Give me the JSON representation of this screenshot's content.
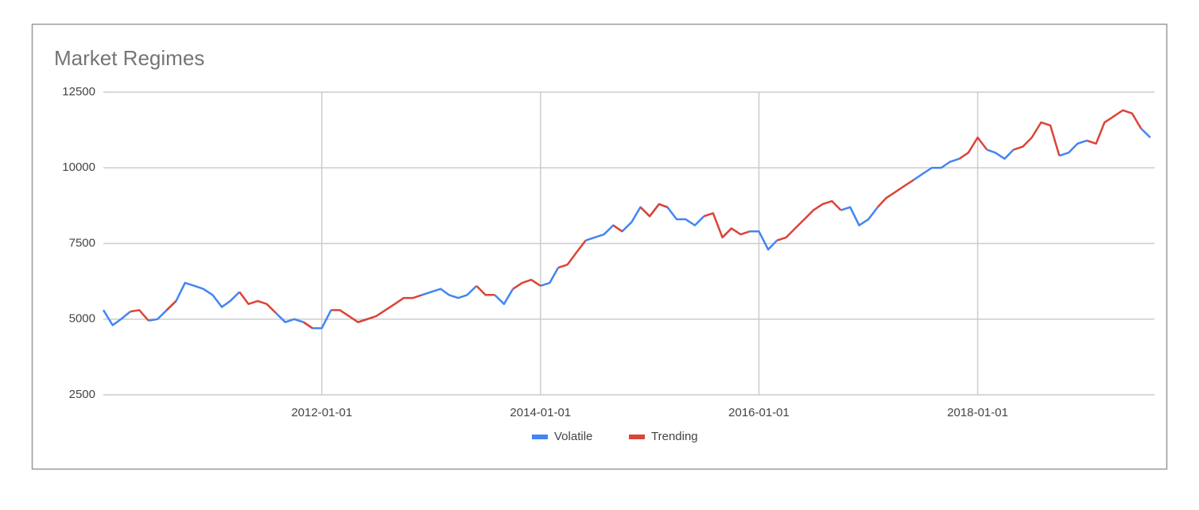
{
  "chart_data": {
    "type": "line",
    "title": "Market Regimes",
    "x": [
      "2010-01-01",
      "2010-02-01",
      "2010-03-01",
      "2010-04-01",
      "2010-05-01",
      "2010-06-01",
      "2010-07-01",
      "2010-08-01",
      "2010-09-01",
      "2010-10-01",
      "2010-11-01",
      "2010-12-01",
      "2011-01-01",
      "2011-02-01",
      "2011-03-01",
      "2011-04-01",
      "2011-05-01",
      "2011-06-01",
      "2011-07-01",
      "2011-08-01",
      "2011-09-01",
      "2011-10-01",
      "2011-11-01",
      "2011-12-01",
      "2012-01-01",
      "2012-02-01",
      "2012-03-01",
      "2012-04-01",
      "2012-05-01",
      "2012-06-01",
      "2012-07-01",
      "2012-08-01",
      "2012-09-01",
      "2012-10-01",
      "2012-11-01",
      "2012-12-01",
      "2013-01-01",
      "2013-02-01",
      "2013-03-01",
      "2013-04-01",
      "2013-05-01",
      "2013-06-01",
      "2013-07-01",
      "2013-08-01",
      "2013-09-01",
      "2013-10-01",
      "2013-11-01",
      "2013-12-01",
      "2014-01-01",
      "2014-02-01",
      "2014-03-01",
      "2014-04-01",
      "2014-05-01",
      "2014-06-01",
      "2014-07-01",
      "2014-08-01",
      "2014-09-01",
      "2014-10-01",
      "2014-11-01",
      "2014-12-01",
      "2015-01-01",
      "2015-02-01",
      "2015-03-01",
      "2015-04-01",
      "2015-05-01",
      "2015-06-01",
      "2015-07-01",
      "2015-08-01",
      "2015-09-01",
      "2015-10-01",
      "2015-11-01",
      "2015-12-01",
      "2016-01-01",
      "2016-02-01",
      "2016-03-01",
      "2016-04-01",
      "2016-05-01",
      "2016-06-01",
      "2016-07-01",
      "2016-08-01",
      "2016-09-01",
      "2016-10-01",
      "2016-11-01",
      "2016-12-01",
      "2017-01-01",
      "2017-02-01",
      "2017-03-01",
      "2017-04-01",
      "2017-05-01",
      "2017-06-01",
      "2017-07-01",
      "2017-08-01",
      "2017-09-01",
      "2017-10-01",
      "2017-11-01",
      "2017-12-01",
      "2018-01-01",
      "2018-02-01",
      "2018-03-01",
      "2018-04-01",
      "2018-05-01",
      "2018-06-01",
      "2018-07-01",
      "2018-08-01",
      "2018-09-01",
      "2018-10-01",
      "2018-11-01",
      "2018-12-01",
      "2019-01-01",
      "2019-02-01",
      "2019-03-01",
      "2019-04-01",
      "2019-05-01",
      "2019-06-01",
      "2019-07-01",
      "2019-08-01"
    ],
    "series": [
      {
        "name": "Volatile",
        "color": "#4285f4",
        "values": [
          5300,
          4800,
          5000,
          5250,
          null,
          4950,
          5000,
          5300,
          5600,
          6200,
          6100,
          6000,
          5800,
          5400,
          5600,
          5900,
          null,
          null,
          null,
          5200,
          4900,
          5000,
          4900,
          4700,
          4700,
          5300,
          null,
          null,
          4900,
          5000,
          null,
          null,
          null,
          null,
          null,
          5800,
          5900,
          6000,
          5800,
          5700,
          5800,
          6100,
          null,
          5800,
          5500,
          6000,
          null,
          null,
          6100,
          6200,
          6700,
          null,
          null,
          7600,
          7700,
          7800,
          8100,
          7900,
          8200,
          8700,
          8400,
          8800,
          8700,
          8300,
          8300,
          8100,
          8400,
          null,
          7700,
          8000,
          null,
          7900,
          7900,
          7300,
          7600,
          null,
          null,
          null,
          null,
          null,
          null,
          8600,
          8700,
          8100,
          8300,
          8700,
          null,
          null,
          null,
          9600,
          9800,
          10000,
          10000,
          10200,
          10300,
          null,
          null,
          10600,
          10500,
          10300,
          10600,
          null,
          null,
          null,
          null,
          10400,
          10500,
          10800,
          10900,
          null,
          null,
          null,
          null,
          null,
          11300,
          11000
        ]
      },
      {
        "name": "Trending",
        "color": "#db4437",
        "values": [
          null,
          null,
          null,
          5250,
          5300,
          4950,
          null,
          5300,
          5600,
          null,
          null,
          null,
          null,
          null,
          null,
          5900,
          5500,
          5600,
          5500,
          5200,
          null,
          null,
          4900,
          4700,
          null,
          5300,
          5300,
          5100,
          4900,
          5000,
          5100,
          5300,
          5500,
          5700,
          5700,
          5800,
          null,
          null,
          null,
          null,
          null,
          6100,
          5800,
          5800,
          null,
          6000,
          6200,
          6300,
          6100,
          null,
          6700,
          6800,
          7200,
          7600,
          null,
          null,
          8100,
          7900,
          null,
          8700,
          8400,
          8800,
          8700,
          null,
          null,
          null,
          8400,
          8500,
          7700,
          8000,
          7800,
          7900,
          null,
          null,
          7600,
          7700,
          8000,
          8300,
          8600,
          8800,
          8900,
          8600,
          null,
          null,
          null,
          8700,
          9000,
          9200,
          9400,
          9600,
          null,
          null,
          null,
          null,
          10300,
          10500,
          11000,
          10600,
          null,
          null,
          10600,
          10700,
          11000,
          11500,
          11400,
          10400,
          null,
          null,
          10900,
          10800,
          11500,
          11700,
          11900,
          11800,
          11300,
          null
        ]
      }
    ],
    "xlim": [
      "2010-01-01",
      "2019-08-15"
    ],
    "xticks": [
      "2012-01-01",
      "2014-01-01",
      "2016-01-01",
      "2018-01-01"
    ],
    "ylim": [
      2500,
      12500
    ],
    "yticks": [
      2500,
      5000,
      7500,
      10000,
      12500
    ],
    "grid": true,
    "legend": "bottom"
  }
}
